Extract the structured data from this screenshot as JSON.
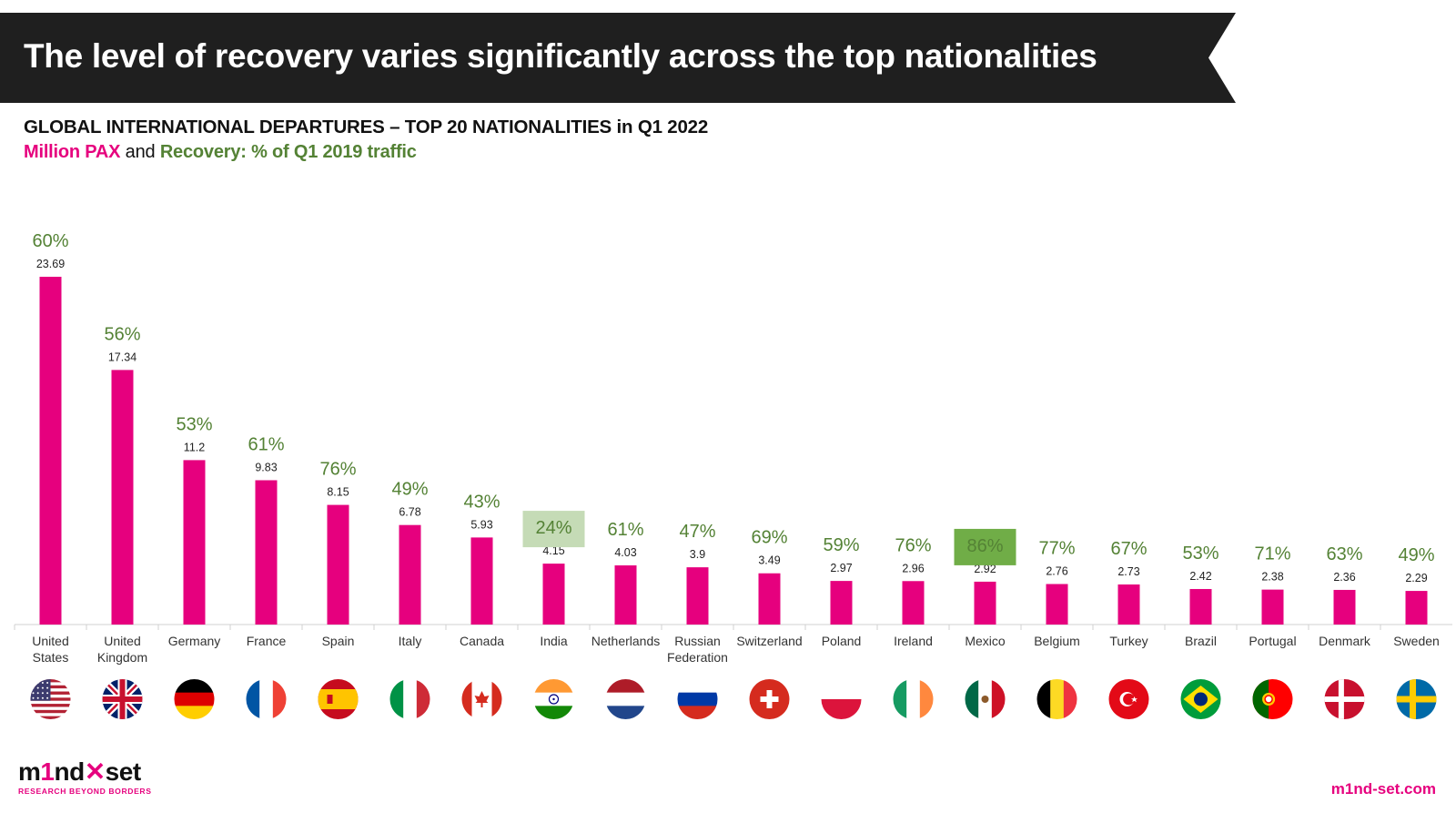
{
  "header": {
    "title": "The level of recovery varies significantly across the top nationalities"
  },
  "chart_heading": "GLOBAL INTERNATIONAL DEPARTURES – TOP 20 NATIONALITIES in Q1 2022",
  "chart_subheading": {
    "pax_label": "Million PAX",
    "connector": " and ",
    "recovery_label": "Recovery: % of Q1 2019 traffic"
  },
  "colors": {
    "bar": "#e6007e",
    "recovery_text": "#548235",
    "highlight_light": "#c5dbb6",
    "highlight_dark": "#70ad47",
    "banner": "#1f1f1f"
  },
  "chart_data": {
    "type": "bar",
    "categories": [
      "United States",
      "United Kingdom",
      "Germany",
      "France",
      "Spain",
      "Italy",
      "Canada",
      "India",
      "Netherlands",
      "Russian Federation",
      "Switzerland",
      "Poland",
      "Ireland",
      "Mexico",
      "Belgium",
      "Turkey",
      "Brazil",
      "Portugal",
      "Denmark",
      "Sweden"
    ],
    "category_lines": [
      [
        "United",
        "States"
      ],
      [
        "United",
        "Kingdom"
      ],
      [
        "Germany"
      ],
      [
        "France"
      ],
      [
        "Spain"
      ],
      [
        "Italy"
      ],
      [
        "Canada"
      ],
      [
        "India"
      ],
      [
        "Netherlands"
      ],
      [
        "Russian",
        "Federation"
      ],
      [
        "Switzerland"
      ],
      [
        "Poland"
      ],
      [
        "Ireland"
      ],
      [
        "Mexico"
      ],
      [
        "Belgium"
      ],
      [
        "Turkey"
      ],
      [
        "Brazil"
      ],
      [
        "Portugal"
      ],
      [
        "Denmark"
      ],
      [
        "Sweden"
      ]
    ],
    "values": [
      23.69,
      17.34,
      11.2,
      9.83,
      8.15,
      6.78,
      5.93,
      4.15,
      4.03,
      3.9,
      3.49,
      2.97,
      2.96,
      2.92,
      2.76,
      2.73,
      2.42,
      2.38,
      2.36,
      2.29
    ],
    "value_labels": [
      "23.69",
      "17.34",
      "11.2",
      "9.83",
      "8.15",
      "6.78",
      "5.93",
      "4.15",
      "4.03",
      "3.9",
      "3.49",
      "2.97",
      "2.96",
      "2.92",
      "2.76",
      "2.73",
      "2.42",
      "2.38",
      "2.36",
      "2.29"
    ],
    "recovery_labels": [
      "60%",
      "56%",
      "53%",
      "61%",
      "76%",
      "49%",
      "43%",
      "24%",
      "61%",
      "47%",
      "69%",
      "59%",
      "76%",
      "86%",
      "77%",
      "67%",
      "53%",
      "71%",
      "63%",
      "49%"
    ],
    "highlights": [
      {
        "category": "India",
        "style": "light"
      },
      {
        "category": "Mexico",
        "style": "dark"
      }
    ],
    "flags": [
      "flag-us-icon",
      "flag-uk-icon",
      "flag-germany-icon",
      "flag-france-icon",
      "flag-spain-icon",
      "flag-italy-icon",
      "flag-canada-icon",
      "flag-india-icon",
      "flag-netherlands-icon",
      "flag-russia-icon",
      "flag-switzerland-icon",
      "flag-poland-icon",
      "flag-ireland-icon",
      "flag-mexico-icon",
      "flag-belgium-icon",
      "flag-turkey-icon",
      "flag-brazil-icon",
      "flag-portugal-icon",
      "flag-denmark-icon",
      "flag-sweden-icon"
    ],
    "grid": false,
    "legend": "none"
  },
  "footer": {
    "logo_text_a": "m",
    "logo_text_b": "1",
    "logo_text_c": "nd",
    "logo_text_d": "set",
    "logo_tagline": "RESEARCH BEYOND BORDERS",
    "site": "m1nd-set.com"
  }
}
